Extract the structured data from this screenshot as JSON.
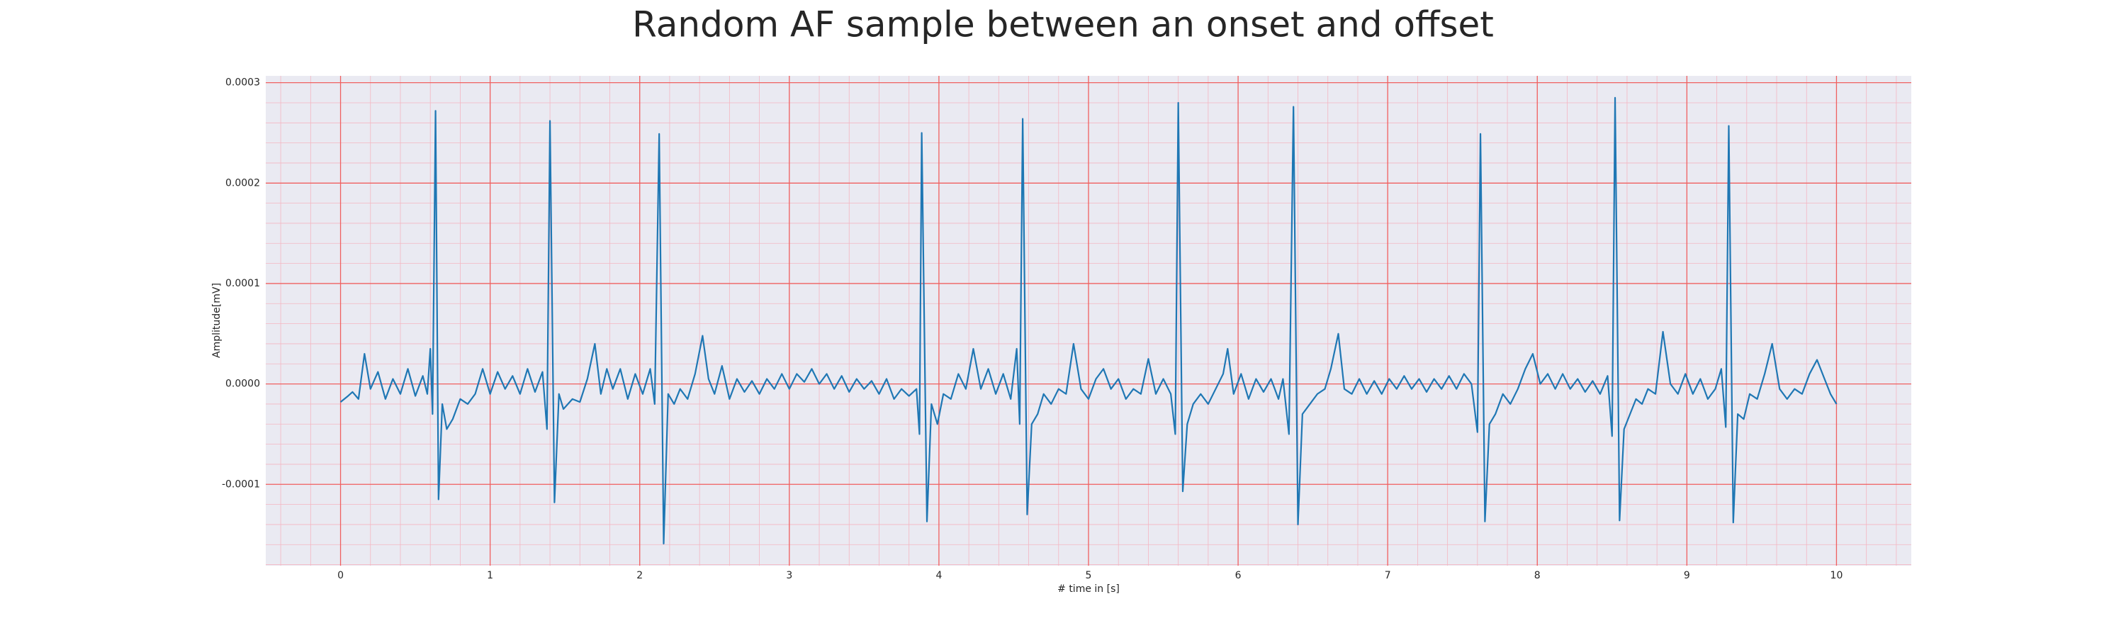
{
  "chart_data": {
    "type": "line",
    "title": "Random AF sample between an onset and offset",
    "x_label": "# time in [s]",
    "y_label": "Amplitude[mV]",
    "color": "#1f77b4",
    "grid": true,
    "minor_grid": true,
    "xlim": [
      -0.5,
      10.5
    ],
    "ylim": [
      -0.000181,
      0.0003068
    ],
    "xticks": [
      0,
      1,
      2,
      3,
      4,
      5,
      6,
      7,
      8,
      9,
      10
    ],
    "yticks": [
      {
        "value": -0.0001,
        "label": "-0.0001"
      },
      {
        "value": 0,
        "label": "0.0000"
      },
      {
        "value": 0.0001,
        "label": "0.0001"
      },
      {
        "value": 0.0002,
        "label": "0.0002"
      },
      {
        "value": 0.0003,
        "label": "0.0003"
      }
    ],
    "x": [
      0.0,
      0.05,
      0.08,
      0.12,
      0.16,
      0.2,
      0.25,
      0.3,
      0.35,
      0.4,
      0.45,
      0.5,
      0.55,
      0.58,
      0.6,
      0.615,
      0.635,
      0.655,
      0.68,
      0.71,
      0.75,
      0.8,
      0.85,
      0.9,
      0.95,
      1.0,
      1.05,
      1.1,
      1.15,
      1.2,
      1.25,
      1.3,
      1.35,
      1.38,
      1.4,
      1.43,
      1.46,
      1.49,
      1.55,
      1.6,
      1.65,
      1.7,
      1.74,
      1.78,
      1.82,
      1.87,
      1.92,
      1.97,
      2.02,
      2.07,
      2.1,
      2.13,
      2.16,
      2.19,
      2.23,
      2.27,
      2.32,
      2.37,
      2.42,
      2.46,
      2.5,
      2.55,
      2.6,
      2.65,
      2.7,
      2.75,
      2.8,
      2.85,
      2.9,
      2.95,
      3.0,
      3.05,
      3.1,
      3.15,
      3.2,
      3.25,
      3.3,
      3.35,
      3.4,
      3.45,
      3.5,
      3.55,
      3.6,
      3.65,
      3.7,
      3.75,
      3.8,
      3.85,
      3.87,
      3.885,
      3.92,
      3.95,
      3.99,
      4.03,
      4.08,
      4.13,
      4.18,
      4.23,
      4.28,
      4.33,
      4.38,
      4.43,
      4.48,
      4.52,
      4.54,
      4.56,
      4.59,
      4.62,
      4.66,
      4.7,
      4.75,
      4.8,
      4.85,
      4.9,
      4.95,
      5.0,
      5.05,
      5.1,
      5.15,
      5.2,
      5.25,
      5.3,
      5.35,
      5.4,
      5.45,
      5.5,
      5.55,
      5.58,
      5.6,
      5.63,
      5.66,
      5.7,
      5.75,
      5.8,
      5.85,
      5.9,
      5.93,
      5.97,
      6.02,
      6.07,
      6.12,
      6.17,
      6.22,
      6.27,
      6.3,
      6.34,
      6.37,
      6.4,
      6.43,
      6.48,
      6.53,
      6.58,
      6.62,
      6.67,
      6.71,
      6.76,
      6.81,
      6.86,
      6.91,
      6.96,
      7.01,
      7.06,
      7.11,
      7.16,
      7.21,
      7.26,
      7.31,
      7.36,
      7.41,
      7.46,
      7.51,
      7.56,
      7.6,
      7.62,
      7.65,
      7.68,
      7.72,
      7.77,
      7.82,
      7.87,
      7.92,
      7.97,
      8.02,
      8.07,
      8.12,
      8.17,
      8.22,
      8.27,
      8.32,
      8.37,
      8.42,
      8.47,
      8.5,
      8.52,
      8.55,
      8.58,
      8.62,
      8.66,
      8.7,
      8.74,
      8.79,
      8.84,
      8.89,
      8.94,
      8.99,
      9.04,
      9.09,
      9.14,
      9.19,
      9.23,
      9.26,
      9.28,
      9.31,
      9.34,
      9.38,
      9.42,
      9.47,
      9.52,
      9.57,
      9.62,
      9.67,
      9.72,
      9.77,
      9.82,
      9.87,
      9.92,
      9.96,
      10.0
    ],
    "values": [
      -1.8e-05,
      -1.2e-05,
      -8e-06,
      -1.5e-05,
      3e-05,
      -5e-06,
      1.2e-05,
      -1.5e-05,
      5e-06,
      -1e-05,
      1.5e-05,
      -1.2e-05,
      8e-06,
      -1e-05,
      3.5e-05,
      -3e-05,
      0.000272,
      -0.000115,
      -2e-05,
      -4.5e-05,
      -3.5e-05,
      -1.5e-05,
      -2e-05,
      -1e-05,
      1.5e-05,
      -1e-05,
      1.2e-05,
      -5e-06,
      8e-06,
      -1e-05,
      1.5e-05,
      -8e-06,
      1.2e-05,
      -4.5e-05,
      0.000262,
      -0.000118,
      -1e-05,
      -2.5e-05,
      -1.5e-05,
      -1.8e-05,
      5e-06,
      4e-05,
      -1e-05,
      1.5e-05,
      -5e-06,
      1.5e-05,
      -1.5e-05,
      1e-05,
      -1e-05,
      1.5e-05,
      -2e-05,
      0.000249,
      -0.000159,
      -1e-05,
      -2e-05,
      -5e-06,
      -1.5e-05,
      1e-05,
      4.8e-05,
      5e-06,
      -1e-05,
      1.8e-05,
      -1.5e-05,
      5e-06,
      -8e-06,
      3e-06,
      -1e-05,
      5e-06,
      -5e-06,
      1e-05,
      -5e-06,
      1e-05,
      2e-06,
      1.5e-05,
      0,
      1e-05,
      -5e-06,
      8e-06,
      -8e-06,
      5e-06,
      -5e-06,
      3e-06,
      -1e-05,
      5e-06,
      -1.5e-05,
      -5e-06,
      -1.2e-05,
      -5e-06,
      -5e-05,
      0.00025,
      -0.000137,
      -2e-05,
      -4e-05,
      -1e-05,
      -1.5e-05,
      1e-05,
      -5e-06,
      3.5e-05,
      -5e-06,
      1.5e-05,
      -1e-05,
      1e-05,
      -1.5e-05,
      3.5e-05,
      -4e-05,
      0.000264,
      -0.00013,
      -4e-05,
      -3e-05,
      -1e-05,
      -2e-05,
      -5e-06,
      -1e-05,
      4e-05,
      -5e-06,
      -1.5e-05,
      5e-06,
      1.5e-05,
      -5e-06,
      5e-06,
      -1.5e-05,
      -5e-06,
      -1e-05,
      2.5e-05,
      -1e-05,
      5e-06,
      -1e-05,
      -5e-05,
      0.00028,
      -0.000107,
      -4e-05,
      -2e-05,
      -1e-05,
      -2e-05,
      -5e-06,
      1e-05,
      3.5e-05,
      -1e-05,
      1e-05,
      -1.5e-05,
      5e-06,
      -8e-06,
      5e-06,
      -1.5e-05,
      5e-06,
      -5e-05,
      0.000276,
      -0.00014,
      -3e-05,
      -2e-05,
      -1e-05,
      -5e-06,
      1.5e-05,
      5e-05,
      -5e-06,
      -1e-05,
      5e-06,
      -1e-05,
      3e-06,
      -1e-05,
      5e-06,
      -5e-06,
      8e-06,
      -5e-06,
      5e-06,
      -8e-06,
      5e-06,
      -5e-06,
      8e-06,
      -5e-06,
      1e-05,
      0,
      -4.8e-05,
      0.000249,
      -0.000137,
      -4e-05,
      -3e-05,
      -1e-05,
      -2e-05,
      -5e-06,
      1.5e-05,
      3e-05,
      0,
      1e-05,
      -5e-06,
      1e-05,
      -5e-06,
      5e-06,
      -8e-06,
      3e-06,
      -1e-05,
      8e-06,
      -5.2e-05,
      0.000285,
      -0.000136,
      -4.5e-05,
      -3e-05,
      -1.5e-05,
      -2e-05,
      -5e-06,
      -1e-05,
      5.2e-05,
      0,
      -1e-05,
      1e-05,
      -1e-05,
      5e-06,
      -1.5e-05,
      -5e-06,
      1.5e-05,
      -4.3e-05,
      0.000257,
      -0.000138,
      -3e-05,
      -3.5e-05,
      -1e-05,
      -1.5e-05,
      1e-05,
      4e-05,
      -5e-06,
      -1.5e-05,
      -5e-06,
      -1e-05,
      1e-05,
      2.4e-05,
      5e-06,
      -1e-05,
      -2e-05
    ]
  }
}
